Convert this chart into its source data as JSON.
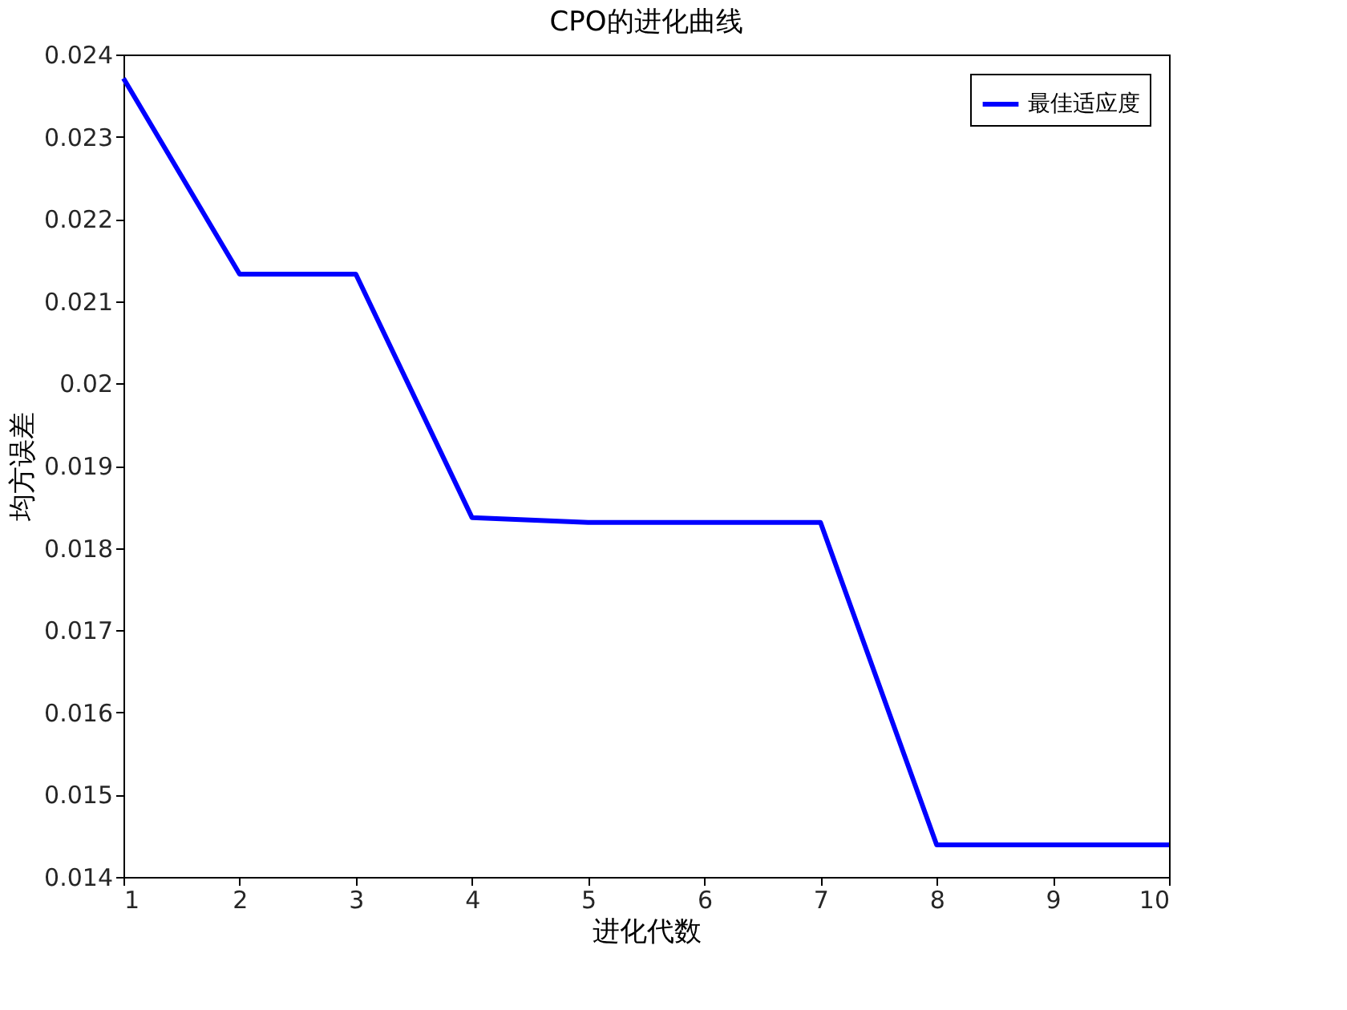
{
  "chart_data": {
    "type": "line",
    "title": "CPO的进化曲线",
    "xlabel": "进化代数",
    "ylabel": "均方误差",
    "x": [
      1,
      2,
      3,
      4,
      5,
      6,
      7,
      8,
      9,
      10
    ],
    "series": [
      {
        "name": "最佳适应度",
        "color": "#0000ff",
        "values": [
          0.02371,
          0.02133,
          0.02133,
          0.01837,
          0.01831,
          0.01831,
          0.01831,
          0.01439,
          0.01439,
          0.01439
        ]
      }
    ],
    "xlim": [
      1,
      10
    ],
    "xticks": [
      1,
      2,
      3,
      4,
      5,
      6,
      7,
      8,
      9,
      10
    ],
    "ylim": [
      0.014,
      0.024
    ],
    "yticks": [
      0.014,
      0.015,
      0.016,
      0.017,
      0.018,
      0.019,
      0.02,
      0.021,
      0.022,
      0.023,
      0.024
    ],
    "grid": false,
    "legend": "top right",
    "marker": "none",
    "line_style": "solid"
  }
}
